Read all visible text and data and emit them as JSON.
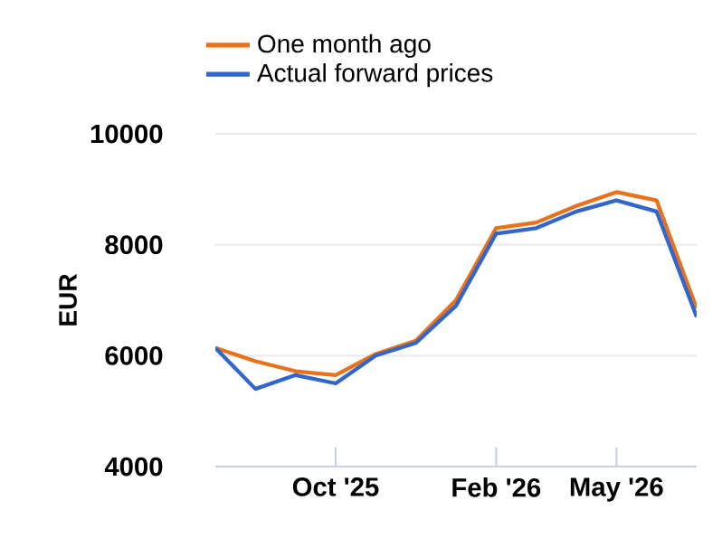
{
  "chart_data": {
    "type": "line",
    "ylabel": "EUR",
    "x": [
      "2025-07",
      "2025-08",
      "2025-09",
      "2025-10",
      "2025-11",
      "2025-12",
      "2026-01",
      "2026-02",
      "2026-03",
      "2026-04",
      "2026-05",
      "2026-06",
      "2026-07"
    ],
    "xlim": [
      "2025-07",
      "2026-07"
    ],
    "xticks": [
      {
        "value": "2025-10",
        "label": "Oct '25"
      },
      {
        "value": "2026-02",
        "label": "Feb '26"
      },
      {
        "value": "2026-05",
        "label": "May '26"
      }
    ],
    "ylim": [
      4000,
      10000
    ],
    "yticks": [
      4000,
      6000,
      8000,
      10000
    ],
    "grid": "y",
    "legend": "top left",
    "marker": "none",
    "line_style": "solid",
    "series": [
      {
        "name": "One month ago",
        "color": "#e8711a",
        "values": [
          6140,
          5900,
          5720,
          5650,
          6030,
          6270,
          7000,
          8300,
          8400,
          8700,
          8950,
          8800,
          6850
        ]
      },
      {
        "name": "Actual forward prices",
        "color": "#3366cc",
        "values": [
          6140,
          5400,
          5650,
          5500,
          6000,
          6230,
          6900,
          8200,
          8300,
          8600,
          8800,
          8600,
          6700
        ]
      }
    ]
  }
}
